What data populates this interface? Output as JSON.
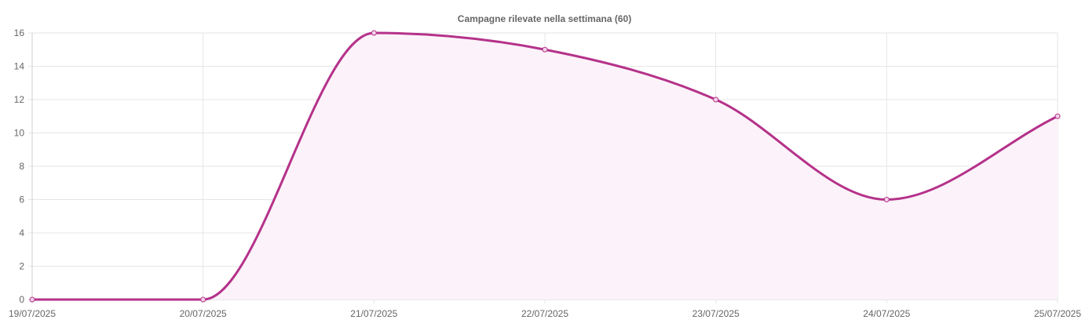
{
  "chart_data": {
    "type": "line",
    "title": "Campagne rilevate nella settimana (60)",
    "x": [
      "19/07/2025",
      "20/07/2025",
      "21/07/2025",
      "22/07/2025",
      "23/07/2025",
      "24/07/2025",
      "25/07/2025"
    ],
    "series": [
      {
        "values": [
          0,
          0,
          16,
          15,
          12,
          6,
          11
        ]
      }
    ],
    "yticks": [
      0,
      2,
      4,
      6,
      8,
      10,
      12,
      14,
      16
    ],
    "ylim": [
      0,
      16
    ],
    "grid": true,
    "legend": "none",
    "colors": {
      "line": "#b5328a",
      "fill": "#fbf3f9",
      "point_fill": "#f3d3e8"
    }
  }
}
